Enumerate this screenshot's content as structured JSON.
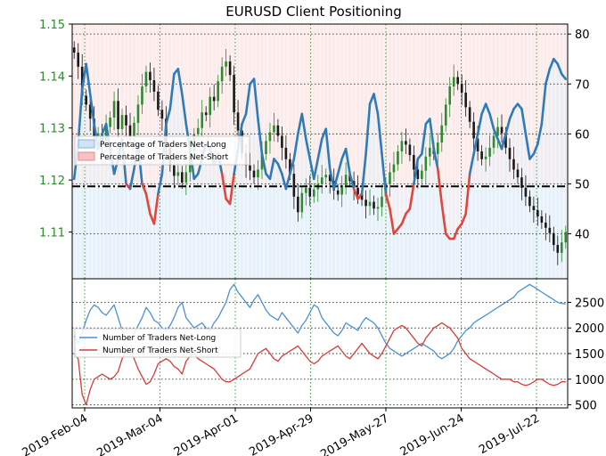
{
  "chart_data": [
    {
      "type": "line",
      "title": "EURUSD Client Positioning",
      "x_ticks": [
        "2019-Feb-04",
        "2019-Mar-04",
        "2019-Apr-01",
        "2019-Apr-29",
        "2019-May-27",
        "2019-Jun-24",
        "2019-Jul-22"
      ],
      "left_axis": {
        "label": "",
        "ticks": [
          "1.15",
          "1.14",
          "1.13",
          "1.12",
          "1.11"
        ],
        "ylim": [
          1.101,
          1.15
        ],
        "color": "#2e8b2e"
      },
      "right_axis": {
        "label": "",
        "ticks": [
          "80",
          "70",
          "60",
          "50",
          "40"
        ],
        "ylim": [
          31,
          82
        ]
      },
      "legend": {
        "position": "upper-left",
        "entries": [
          "Percentage of Traders Net-Long",
          "Percentage of Traders Net-Short"
        ]
      },
      "reference_line": {
        "value": 49.5,
        "style": "dash-dot"
      },
      "series": [
        {
          "name": "Percentage of Traders Net-Long",
          "axis": "right",
          "color": "#2f7ab8",
          "note": "drawn blue where above 50, red where below 50",
          "values": [
            51,
            58,
            69,
            74,
            68,
            62,
            57,
            60,
            62,
            57,
            52,
            55,
            59,
            50,
            49,
            53,
            58,
            50,
            48,
            44,
            42,
            48,
            52,
            62,
            65,
            72,
            73,
            68,
            62,
            57,
            51,
            52,
            55,
            58,
            57,
            54,
            56,
            52,
            47,
            46,
            52,
            57,
            62,
            64,
            70,
            71,
            63,
            56,
            52,
            51,
            55,
            54,
            52,
            49,
            52,
            55,
            60,
            64,
            59,
            55,
            51,
            55,
            59,
            61,
            53,
            49,
            52,
            55,
            57,
            52,
            49,
            47,
            48,
            56,
            66,
            68,
            64,
            56,
            48,
            45,
            40,
            41,
            42,
            44,
            45,
            50,
            55,
            56,
            62,
            63,
            57,
            53,
            46,
            40,
            39,
            39,
            41,
            42,
            44,
            52,
            56,
            60,
            64,
            66,
            64,
            61,
            59,
            57,
            60,
            63,
            65,
            66,
            65,
            60,
            55,
            56,
            58,
            62,
            70,
            73,
            75,
            74,
            72,
            71
          ]
        }
      ],
      "price_candles": {
        "color": "#1a1a1a",
        "up_color": "#2e8b2e",
        "closes": [
          1.1445,
          1.1418,
          1.1362,
          1.1345,
          1.1318,
          1.1285,
          1.129,
          1.1275,
          1.1302,
          1.132,
          1.1352,
          1.1298,
          1.1325,
          1.1305,
          1.1285,
          1.131,
          1.1345,
          1.138,
          1.1408,
          1.1392,
          1.137,
          1.1335,
          1.1318,
          1.1262,
          1.1228,
          1.1208,
          1.1215,
          1.1195,
          1.1215,
          1.1255,
          1.1288,
          1.13,
          1.133,
          1.1325,
          1.136,
          1.1352,
          1.139,
          1.1418,
          1.1428,
          1.1402,
          1.133,
          1.1295,
          1.1252,
          1.1228,
          1.1218,
          1.1205,
          1.122,
          1.125,
          1.1275,
          1.1292,
          1.1305,
          1.1285,
          1.1262,
          1.124,
          1.1212,
          1.1168,
          1.1138,
          1.1175,
          1.1185,
          1.1168,
          1.1182,
          1.1192,
          1.1205,
          1.121,
          1.1198,
          1.118,
          1.1172,
          1.119,
          1.121,
          1.1198,
          1.1185,
          1.1172,
          1.1162,
          1.115,
          1.1158,
          1.1145,
          1.1148,
          1.1168,
          1.1192,
          1.1215,
          1.123,
          1.1255,
          1.1275,
          1.1268,
          1.1248,
          1.122,
          1.1202,
          1.1218,
          1.1245,
          1.1262,
          1.125,
          1.1272,
          1.1305,
          1.1345,
          1.138,
          1.1398,
          1.1385,
          1.1368,
          1.134,
          1.1312,
          1.128,
          1.1255,
          1.124,
          1.1245,
          1.1262,
          1.1285,
          1.1302,
          1.129,
          1.1262,
          1.124,
          1.122,
          1.1205,
          1.1185,
          1.1168,
          1.115,
          1.1142,
          1.113,
          1.1118,
          1.1108,
          1.1098,
          1.1075,
          1.106,
          1.108,
          1.11
        ]
      }
    },
    {
      "type": "line",
      "right_axis": {
        "ticks": [
          "2500",
          "2000",
          "1500",
          "1000",
          "500"
        ],
        "ylim": [
          440,
          2960
        ]
      },
      "legend": {
        "position": "upper-left",
        "entries": [
          "Number of Traders Net-Long",
          "Number of Traders Net-Short"
        ]
      },
      "series": [
        {
          "name": "Number of Traders Net-Long",
          "color": "#4a90d9",
          "values": [
            1850,
            1700,
            1900,
            2150,
            2350,
            2450,
            2400,
            2300,
            2250,
            2350,
            2450,
            2200,
            1950,
            1800,
            1750,
            1900,
            2050,
            2200,
            2400,
            2300,
            2150,
            2100,
            2000,
            1950,
            2050,
            2200,
            2400,
            2500,
            2200,
            2100,
            2000,
            2050,
            2100,
            2000,
            1950,
            2100,
            2200,
            2350,
            2500,
            2750,
            2850,
            2700,
            2600,
            2500,
            2400,
            2550,
            2650,
            2500,
            2350,
            2250,
            2200,
            2150,
            2300,
            2200,
            2100,
            2000,
            1900,
            2050,
            2150,
            2300,
            2450,
            2400,
            2200,
            2100,
            2000,
            1900,
            1850,
            1950,
            2100,
            2050,
            2000,
            1950,
            2100,
            2200,
            2150,
            2100,
            2000,
            1850,
            1700,
            1600,
            1550,
            1500,
            1450,
            1500,
            1550,
            1600,
            1650,
            1700,
            1650,
            1600,
            1550,
            1450,
            1400,
            1450,
            1500,
            1600,
            1750,
            1850,
            1950,
            2000,
            2100,
            2150,
            2200,
            2250,
            2300,
            2350,
            2400,
            2450,
            2500,
            2550,
            2600,
            2700,
            2750,
            2800,
            2850,
            2800,
            2750,
            2700,
            2650,
            2600,
            2550,
            2500,
            2480,
            2470
          ]
        },
        {
          "name": "Number of Traders Net-Short",
          "color": "#d93a3a",
          "values": [
            1500,
            1400,
            700,
            500,
            800,
            1000,
            1050,
            1100,
            1050,
            1000,
            1050,
            1150,
            1400,
            1550,
            1600,
            1400,
            1200,
            1050,
            900,
            950,
            1100,
            1300,
            1350,
            1400,
            1350,
            1250,
            1200,
            1100,
            1350,
            1450,
            1500,
            1400,
            1350,
            1300,
            1250,
            1200,
            1100,
            1000,
            950,
            950,
            1000,
            1050,
            1100,
            1150,
            1200,
            1350,
            1500,
            1550,
            1600,
            1500,
            1400,
            1350,
            1450,
            1500,
            1550,
            1600,
            1650,
            1550,
            1450,
            1350,
            1300,
            1350,
            1450,
            1500,
            1550,
            1600,
            1650,
            1550,
            1450,
            1400,
            1500,
            1600,
            1700,
            1600,
            1500,
            1450,
            1400,
            1500,
            1650,
            1800,
            1950,
            2000,
            2050,
            2000,
            1900,
            1800,
            1700,
            1650,
            1800,
            1900,
            2000,
            2050,
            2100,
            2050,
            2000,
            1900,
            1800,
            1600,
            1500,
            1400,
            1350,
            1300,
            1250,
            1200,
            1150,
            1100,
            1050,
            1000,
            1000,
            1000,
            950,
            950,
            900,
            880,
            900,
            950,
            1000,
            1000,
            950,
            900,
            880,
            900,
            950,
            950
          ]
        }
      ]
    }
  ]
}
